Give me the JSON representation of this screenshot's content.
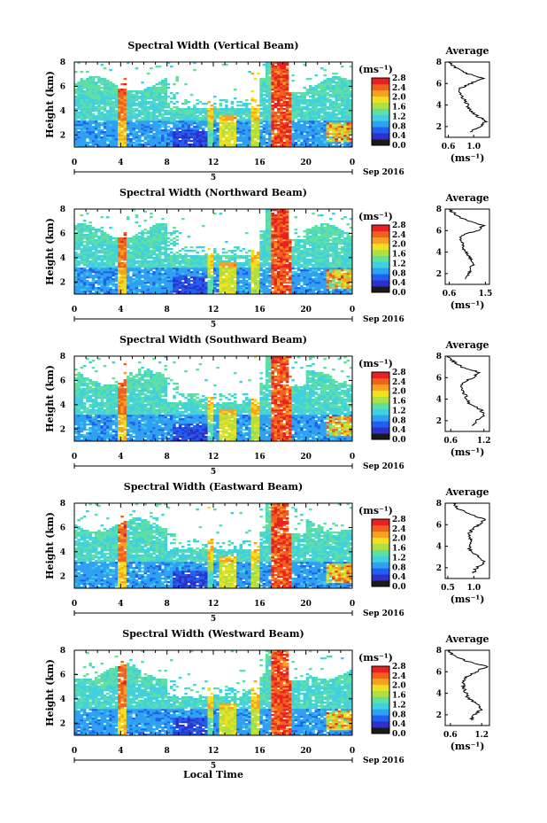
{
  "xlabel": "Local Time",
  "date_label": "Sep 2016",
  "day_label": "5",
  "ylabel": "Height (km)",
  "unit_label": "(ms⁻¹)",
  "avg_title": "Average",
  "avg_xlabel": "(ms⁻¹)",
  "time_ticks": [
    "0",
    "4",
    "8",
    "12",
    "16",
    "20",
    "0"
  ],
  "height_ticks": [
    "2",
    "4",
    "6",
    "8"
  ],
  "avg_height_ticks": [
    "2",
    "4",
    "6",
    "8"
  ],
  "colorbar_ticks": [
    "0.0",
    "0.4",
    "0.8",
    "1.2",
    "1.6",
    "2.0",
    "2.4",
    "2.8"
  ],
  "colorbar_colors": [
    "#1a1a1a",
    "#3030c8",
    "#2060f0",
    "#30a0f0",
    "#40d0e0",
    "#60e0a0",
    "#b0e040",
    "#f0e020",
    "#f8a020",
    "#f06020",
    "#e82020"
  ],
  "chart_data": [
    {
      "type": "heatmap",
      "title": "Spectral Width (Vertical Beam)",
      "xlabel": "Local Time",
      "ylabel": "Height (km)",
      "xlim": [
        0,
        24
      ],
      "ylim": [
        1,
        8
      ],
      "colorbar_range": [
        0.0,
        2.8
      ],
      "avg_profile": {
        "title": "Average",
        "xticks": [
          "0.6",
          "1.0"
        ],
        "xlim": [
          0.55,
          1.25
        ],
        "height": [
          1.5,
          2,
          2.5,
          3,
          3.5,
          4,
          4.5,
          5,
          5.5,
          6,
          6.5,
          7,
          7.5,
          8
        ],
        "value": [
          0.95,
          1.1,
          1.2,
          1.05,
          0.95,
          0.9,
          0.85,
          0.8,
          0.78,
          0.95,
          1.15,
          0.85,
          0.7,
          0.6
        ]
      }
    },
    {
      "type": "heatmap",
      "title": "Spectral Width (Northward Beam)",
      "xlabel": "Local Time",
      "ylabel": "Height (km)",
      "xlim": [
        0,
        24
      ],
      "ylim": [
        1,
        8
      ],
      "colorbar_range": [
        0.0,
        2.8
      ],
      "avg_profile": {
        "title": "Average",
        "xticks": [
          "0.6",
          "1.5"
        ],
        "xlim": [
          0.5,
          1.6
        ],
        "height": [
          1.5,
          2,
          2.5,
          3,
          3.5,
          4,
          4.5,
          5,
          5.5,
          6,
          6.5,
          7,
          7.5,
          8
        ],
        "value": [
          1.0,
          1.1,
          1.15,
          1.2,
          1.1,
          1.0,
          0.95,
          0.9,
          0.85,
          1.3,
          1.45,
          1.0,
          0.75,
          0.6
        ]
      }
    },
    {
      "type": "heatmap",
      "title": "Spectral Width (Southward Beam)",
      "xlabel": "Local Time",
      "ylabel": "Height (km)",
      "xlim": [
        0,
        24
      ],
      "ylim": [
        1,
        8
      ],
      "colorbar_range": [
        0.0,
        2.8
      ],
      "avg_profile": {
        "title": "Average",
        "xticks": [
          "0.6",
          "1.2"
        ],
        "xlim": [
          0.5,
          1.3
        ],
        "height": [
          1.5,
          2,
          2.5,
          3,
          3.5,
          4,
          4.5,
          5,
          5.5,
          6,
          6.5,
          7,
          7.5,
          8
        ],
        "value": [
          1.0,
          1.05,
          1.2,
          1.15,
          0.95,
          0.9,
          0.85,
          0.8,
          0.8,
          1.0,
          1.1,
          0.8,
          0.65,
          0.55
        ]
      }
    },
    {
      "type": "heatmap",
      "title": "Spectral Width (Eastward Beam)",
      "xlabel": "Local Time",
      "ylabel": "Height (km)",
      "xlim": [
        0,
        24
      ],
      "ylim": [
        1,
        8
      ],
      "colorbar_range": [
        0.0,
        2.8
      ],
      "avg_profile": {
        "title": "Average",
        "xticks": [
          "0.5",
          "1.0"
        ],
        "xlim": [
          0.45,
          1.3
        ],
        "height": [
          1.5,
          2,
          2.5,
          3,
          3.5,
          4,
          4.5,
          5,
          5.5,
          6,
          6.5,
          7,
          7.5,
          8
        ],
        "value": [
          1.0,
          1.05,
          1.2,
          1.1,
          0.95,
          0.9,
          0.95,
          0.9,
          0.95,
          1.1,
          1.2,
          0.9,
          0.7,
          0.6
        ]
      }
    },
    {
      "type": "heatmap",
      "title": "Spectral Width (Westward Beam)",
      "xlabel": "Local Time",
      "ylabel": "Height (km)",
      "xlim": [
        0,
        24
      ],
      "ylim": [
        1,
        8
      ],
      "colorbar_range": [
        0.0,
        2.8
      ],
      "avg_profile": {
        "title": "Average",
        "xticks": [
          "0.6",
          "1.2"
        ],
        "xlim": [
          0.5,
          1.35
        ],
        "height": [
          1.5,
          2,
          2.5,
          3,
          3.5,
          4,
          4.5,
          5,
          5.5,
          6,
          6.5,
          7,
          7.5,
          8
        ],
        "value": [
          1.0,
          1.05,
          1.2,
          1.1,
          0.95,
          0.9,
          0.85,
          0.85,
          0.9,
          1.1,
          1.3,
          0.9,
          0.65,
          0.55
        ]
      }
    }
  ]
}
